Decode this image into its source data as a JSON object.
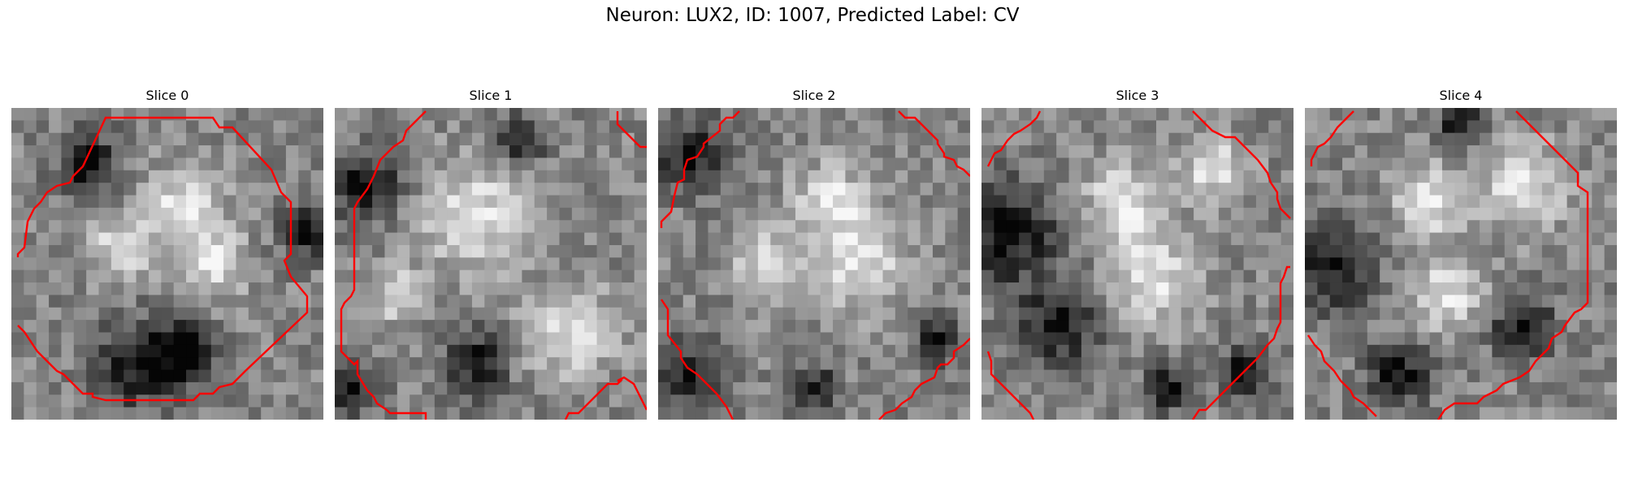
{
  "figure": {
    "title": "Neuron: LUX2, ID: 1007, Predicted Label: CV"
  },
  "colors": {
    "contour": "#ff0000",
    "background": "#ffffff"
  },
  "grid_size": 25,
  "panels": [
    {
      "title": "Slice 0",
      "bright_centers": [
        [
          0.55,
          0.32,
          0.09
        ],
        [
          0.35,
          0.45,
          0.07
        ],
        [
          0.65,
          0.5,
          0.07
        ]
      ],
      "dark_centers": [
        [
          0.42,
          0.82,
          0.1
        ],
        [
          0.55,
          0.78,
          0.06
        ],
        [
          0.25,
          0.18,
          0.07
        ],
        [
          0.95,
          0.4,
          0.06
        ]
      ]
    },
    {
      "title": "Slice 1",
      "bright_centers": [
        [
          0.45,
          0.35,
          0.12
        ],
        [
          0.75,
          0.72,
          0.1
        ],
        [
          0.2,
          0.6,
          0.06
        ]
      ],
      "dark_centers": [
        [
          0.1,
          0.25,
          0.08
        ],
        [
          0.45,
          0.82,
          0.07
        ],
        [
          0.05,
          0.9,
          0.06
        ],
        [
          0.6,
          0.1,
          0.05
        ]
      ]
    },
    {
      "title": "Slice 2",
      "bright_centers": [
        [
          0.55,
          0.3,
          0.08
        ],
        [
          0.65,
          0.5,
          0.1
        ],
        [
          0.35,
          0.5,
          0.07
        ]
      ],
      "dark_centers": [
        [
          0.1,
          0.15,
          0.08
        ],
        [
          0.1,
          0.85,
          0.07
        ],
        [
          0.5,
          0.9,
          0.05
        ],
        [
          0.9,
          0.75,
          0.05
        ]
      ]
    },
    {
      "title": "Slice 3",
      "bright_centers": [
        [
          0.45,
          0.3,
          0.09
        ],
        [
          0.55,
          0.55,
          0.1
        ],
        [
          0.75,
          0.2,
          0.07
        ]
      ],
      "dark_centers": [
        [
          0.08,
          0.4,
          0.12
        ],
        [
          0.25,
          0.7,
          0.09
        ],
        [
          0.85,
          0.85,
          0.06
        ],
        [
          0.6,
          0.9,
          0.05
        ]
      ]
    },
    {
      "title": "Slice 4",
      "bright_centers": [
        [
          0.7,
          0.25,
          0.1
        ],
        [
          0.4,
          0.3,
          0.08
        ],
        [
          0.45,
          0.6,
          0.08
        ]
      ],
      "dark_centers": [
        [
          0.08,
          0.5,
          0.1
        ],
        [
          0.7,
          0.7,
          0.07
        ],
        [
          0.3,
          0.85,
          0.07
        ],
        [
          0.5,
          0.05,
          0.05
        ]
      ]
    }
  ]
}
